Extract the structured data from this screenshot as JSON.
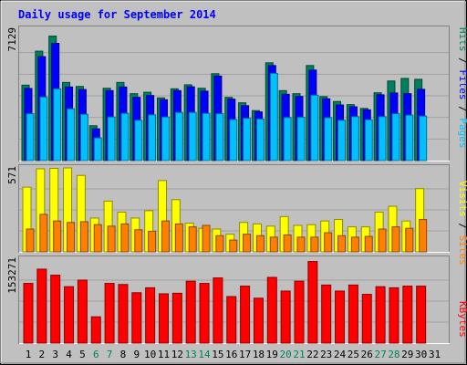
{
  "title": "Daily usage for September 2014",
  "colors": {
    "background": "#c0c0c0",
    "frame": "#ffffff",
    "title": "#0000ff",
    "hits": "#00805c",
    "files": "#0000ff",
    "pages": "#00c0ff",
    "visits": "#ffff00",
    "sites": "#ff8000",
    "kbytes": "#ff0000",
    "weekday_label": "#000000",
    "weekend_label": "#00805c",
    "axis": "#000000"
  },
  "chart_data": [
    {
      "type": "bar",
      "panel": "hits-files-pages",
      "ymax_label": "7129",
      "ylim": [
        0,
        7129
      ],
      "legend": [
        "Pages",
        "Files",
        "Hits"
      ],
      "categories": [
        "1",
        "2",
        "3",
        "4",
        "5",
        "6",
        "7",
        "8",
        "9",
        "10",
        "11",
        "12",
        "13",
        "14",
        "15",
        "16",
        "17",
        "18",
        "19",
        "20",
        "21",
        "22",
        "23",
        "24",
        "25",
        "26",
        "27",
        "28",
        "29",
        "30",
        "31"
      ],
      "series": [
        {
          "name": "Hits",
          "color_key": "hits",
          "values": [
            4150,
            6020,
            6850,
            4300,
            4080,
            1920,
            3980,
            4300,
            3680,
            3760,
            3450,
            3950,
            4170,
            3980,
            4780,
            3480,
            3180,
            2750,
            5380,
            3850,
            3680,
            5230,
            3520,
            3250,
            3080,
            2870,
            3730,
            4380,
            4520,
            4470,
            0
          ]
        },
        {
          "name": "Files",
          "color_key": "files",
          "values": [
            3970,
            5720,
            6450,
            4050,
            3910,
            1750,
            3850,
            4050,
            3480,
            3580,
            3350,
            3850,
            4060,
            3820,
            4650,
            3380,
            3020,
            2680,
            5230,
            3650,
            3530,
            4980,
            3400,
            3060,
            2960,
            2790,
            3620,
            3720,
            3680,
            3920,
            0
          ]
        },
        {
          "name": "Pages",
          "color_key": "pages",
          "values": [
            2580,
            3500,
            3950,
            2850,
            2550,
            1250,
            2400,
            2600,
            2220,
            2520,
            2400,
            2650,
            2650,
            2600,
            2580,
            2260,
            2330,
            2290,
            4800,
            2370,
            2380,
            3600,
            2360,
            2220,
            2420,
            2250,
            2420,
            2580,
            2500,
            2450,
            0
          ]
        }
      ]
    },
    {
      "type": "bar",
      "panel": "visits-sites",
      "ymax_label": "571",
      "ylim": [
        0,
        571
      ],
      "legend": [
        "Sites",
        "Visits"
      ],
      "categories": [
        "1",
        "2",
        "3",
        "4",
        "5",
        "6",
        "7",
        "8",
        "9",
        "10",
        "11",
        "12",
        "13",
        "14",
        "15",
        "16",
        "17",
        "18",
        "19",
        "20",
        "21",
        "22",
        "23",
        "24",
        "25",
        "26",
        "27",
        "28",
        "29",
        "30",
        "31"
      ],
      "series": [
        {
          "name": "Visits",
          "color_key": "visits",
          "values": [
            440,
            565,
            568,
            571,
            520,
            230,
            345,
            270,
            230,
            280,
            485,
            355,
            195,
            160,
            155,
            120,
            200,
            190,
            175,
            240,
            180,
            185,
            210,
            220,
            170,
            170,
            270,
            310,
            210,
            430,
            0
          ]
        },
        {
          "name": "Sites",
          "color_key": "sites",
          "values": [
            155,
            255,
            210,
            200,
            205,
            185,
            175,
            190,
            150,
            140,
            210,
            190,
            170,
            180,
            110,
            80,
            120,
            110,
            100,
            115,
            100,
            100,
            130,
            110,
            100,
            105,
            155,
            170,
            160,
            220,
            0
          ]
        }
      ]
    },
    {
      "type": "bar",
      "panel": "kbytes",
      "ymax_label": "153271",
      "ylim": [
        0,
        153271
      ],
      "legend": [
        "KBytes"
      ],
      "categories": [
        "1",
        "2",
        "3",
        "4",
        "5",
        "6",
        "7",
        "8",
        "9",
        "10",
        "11",
        "12",
        "13",
        "14",
        "15",
        "16",
        "17",
        "18",
        "19",
        "20",
        "21",
        "22",
        "23",
        "24",
        "25",
        "26",
        "27",
        "28",
        "29",
        "30",
        "31"
      ],
      "series": [
        {
          "name": "KBytes",
          "color_key": "kbytes",
          "values": [
            109000,
            135000,
            124000,
            103000,
            115000,
            48000,
            109000,
            107000,
            92000,
            101000,
            90000,
            91000,
            113000,
            109000,
            119000,
            85000,
            104000,
            82000,
            120000,
            95000,
            113000,
            149000,
            106000,
            95000,
            106000,
            89000,
            103000,
            101000,
            104000,
            104000,
            0
          ]
        }
      ]
    }
  ],
  "days": [
    {
      "label": "1",
      "weekend": false
    },
    {
      "label": "2",
      "weekend": false
    },
    {
      "label": "3",
      "weekend": false
    },
    {
      "label": "4",
      "weekend": false
    },
    {
      "label": "5",
      "weekend": false
    },
    {
      "label": "6",
      "weekend": true
    },
    {
      "label": "7",
      "weekend": true
    },
    {
      "label": "8",
      "weekend": false
    },
    {
      "label": "9",
      "weekend": false
    },
    {
      "label": "10",
      "weekend": false
    },
    {
      "label": "11",
      "weekend": false
    },
    {
      "label": "12",
      "weekend": false
    },
    {
      "label": "13",
      "weekend": true
    },
    {
      "label": "14",
      "weekend": true
    },
    {
      "label": "15",
      "weekend": false
    },
    {
      "label": "16",
      "weekend": false
    },
    {
      "label": "17",
      "weekend": false
    },
    {
      "label": "18",
      "weekend": false
    },
    {
      "label": "19",
      "weekend": false
    },
    {
      "label": "20",
      "weekend": true
    },
    {
      "label": "21",
      "weekend": true
    },
    {
      "label": "22",
      "weekend": false
    },
    {
      "label": "23",
      "weekend": false
    },
    {
      "label": "24",
      "weekend": false
    },
    {
      "label": "25",
      "weekend": false
    },
    {
      "label": "26",
      "weekend": false
    },
    {
      "label": "27",
      "weekend": true
    },
    {
      "label": "28",
      "weekend": true
    },
    {
      "label": "29",
      "weekend": false
    },
    {
      "label": "30",
      "weekend": false
    },
    {
      "label": "31",
      "weekend": false
    }
  ],
  "legend_text": {
    "top": {
      "pages": "Pages",
      "sep1": " / ",
      "files": "Files",
      "sep2": " / ",
      "hits": "Hits"
    },
    "mid": {
      "sites": "Sites",
      "sep1": " / ",
      "visits": "Visits"
    },
    "bottom": {
      "kbytes": "KBytes"
    }
  }
}
